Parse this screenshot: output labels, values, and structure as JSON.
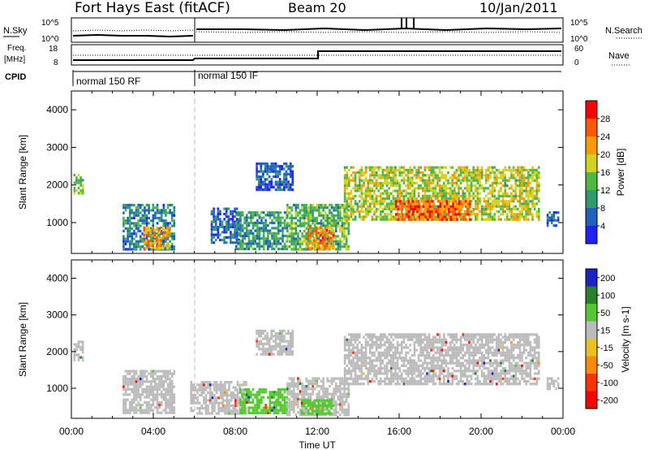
{
  "header": {
    "station": "Fort Hays East (fitACF)",
    "beam": "Beam 20",
    "date": "10/Jan/2011"
  },
  "panel_top": {
    "left_label": "N.Sky",
    "left_tick_high": "10^5",
    "left_tick_low": "10^0",
    "right_label": "N.Search",
    "right_tick_high": "10^5",
    "right_tick_low": "10^0"
  },
  "panel_freq": {
    "left_label_1": "Freq.",
    "left_label_2": "[MHz]",
    "left_tick_high": "18",
    "left_tick_low": "8",
    "right_label": "Nave",
    "right_tick_high": "60",
    "right_tick_low": "0"
  },
  "panel_cpid": {
    "label": "CPID",
    "mode_1": "normal 150 RF",
    "mode_2": "normal 150 IF"
  },
  "colors": {
    "power_scale": [
      "#1f1fff",
      "#1f5fc0",
      "#2f9a6a",
      "#4fb83f",
      "#d2d21a",
      "#ff9a00",
      "#ff5a00",
      "#ff0000"
    ],
    "velocity_scale": [
      "#2020c8",
      "#2a7f2a",
      "#54c830",
      "#bbbbbb",
      "#e8c020",
      "#ff8c00",
      "#ff3300",
      "#ff0000"
    ]
  },
  "chart_data": [
    {
      "type": "heatmap",
      "name": "power",
      "xlabel": "Time UT",
      "ylabel": "Slant Range [km]",
      "xlim": [
        0,
        24
      ],
      "ylim": [
        180,
        4500
      ],
      "x_ticks": [
        "00:00",
        "04:00",
        "08:00",
        "12:00",
        "16:00",
        "20:00",
        "00:00"
      ],
      "y_ticks": [
        "1000",
        "2000",
        "3000",
        "4000"
      ],
      "colorbar": {
        "label": "Power [dB]",
        "ticks": [
          "4",
          "8",
          "12",
          "16",
          "20",
          "24",
          "28"
        ],
        "range": [
          0,
          30
        ]
      },
      "regions": [
        {
          "t0": 0.1,
          "t1": 0.6,
          "r0": 1800,
          "r1": 2300,
          "value": 14
        },
        {
          "t0": 2.5,
          "t1": 5.0,
          "r0": 300,
          "r1": 1500,
          "value": 8
        },
        {
          "t0": 3.5,
          "t1": 4.8,
          "r0": 300,
          "r1": 900,
          "value": 20
        },
        {
          "t0": 6.8,
          "t1": 8.2,
          "r0": 500,
          "r1": 1400,
          "value": 6
        },
        {
          "t0": 8.0,
          "t1": 10.5,
          "r0": 300,
          "r1": 1300,
          "value": 10
        },
        {
          "t0": 9.0,
          "t1": 10.8,
          "r0": 1900,
          "r1": 2600,
          "value": 5
        },
        {
          "t0": 10.5,
          "t1": 13.5,
          "r0": 300,
          "r1": 1500,
          "value": 12
        },
        {
          "t0": 11.5,
          "t1": 12.8,
          "r0": 300,
          "r1": 900,
          "value": 22
        },
        {
          "t0": 13.3,
          "t1": 22.8,
          "r0": 1100,
          "r1": 2500,
          "value": 16
        },
        {
          "t0": 15.8,
          "t1": 19.5,
          "r0": 1100,
          "r1": 1600,
          "value": 24
        },
        {
          "t0": 23.2,
          "t1": 23.8,
          "r0": 950,
          "r1": 1300,
          "value": 6
        }
      ]
    },
    {
      "type": "heatmap",
      "name": "velocity",
      "xlabel": "Time UT",
      "ylabel": "Slant Range [km]",
      "xlim": [
        0,
        24
      ],
      "ylim": [
        180,
        4500
      ],
      "x_ticks": [
        "00:00",
        "04:00",
        "08:00",
        "12:00",
        "16:00",
        "20:00",
        "00:00"
      ],
      "y_ticks": [
        "1000",
        "2000",
        "3000",
        "4000"
      ],
      "colorbar": {
        "label": "Velocity [m s-1]",
        "ticks": [
          "200",
          "100",
          "50",
          "15",
          "-15",
          "-50",
          "-100",
          "-200"
        ]
      },
      "regions": [
        {
          "t0": 0.1,
          "t1": 0.6,
          "r0": 1800,
          "r1": 2300,
          "value": 0
        },
        {
          "t0": 2.5,
          "t1": 5.0,
          "r0": 300,
          "r1": 1500,
          "value": 0
        },
        {
          "t0": 5.8,
          "t1": 8.5,
          "r0": 300,
          "r1": 1200,
          "value": 0
        },
        {
          "t0": 8.2,
          "t1": 10.5,
          "r0": 300,
          "r1": 1000,
          "value": 60
        },
        {
          "t0": 9.0,
          "t1": 10.8,
          "r0": 1900,
          "r1": 2600,
          "value": 0
        },
        {
          "t0": 10.5,
          "t1": 13.5,
          "r0": 300,
          "r1": 1300,
          "value": 0
        },
        {
          "t0": 11.2,
          "t1": 12.8,
          "r0": 300,
          "r1": 700,
          "value": 60
        },
        {
          "t0": 13.3,
          "t1": 22.8,
          "r0": 1100,
          "r1": 2500,
          "value": 0
        },
        {
          "t0": 23.2,
          "t1": 23.8,
          "r0": 950,
          "r1": 1300,
          "value": 0
        }
      ]
    }
  ]
}
